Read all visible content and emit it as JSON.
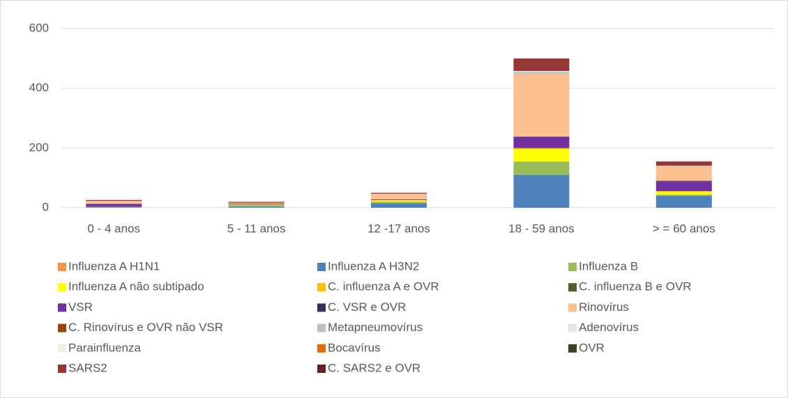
{
  "chart_data": {
    "type": "stacked_bar",
    "categories": [
      "0 - 4  anos",
      "5 - 11 anos",
      "12 -17 anos",
      "18 - 59 anos",
      "> = 60 anos"
    ],
    "ylim": [
      0,
      600
    ],
    "yticks": [
      0,
      200,
      400,
      600
    ],
    "grid": true,
    "legend": "bottom",
    "series": [
      {
        "name": "Influenza A H1N1",
        "color": "#f79646",
        "values": [
          1,
          0,
          0,
          0,
          0
        ]
      },
      {
        "name": "Influenza A H3N2",
        "color": "#4f81bd",
        "values": [
          3,
          4,
          15,
          110,
          40
        ]
      },
      {
        "name": "Influenza B",
        "color": "#9bbb59",
        "values": [
          0,
          5,
          5,
          45,
          4
        ]
      },
      {
        "name": "Influenza A não subtipado",
        "color": "#ffff00",
        "values": [
          0,
          2,
          4,
          41,
          9
        ]
      },
      {
        "name": "C. influenza A e OVR",
        "color": "#ffc000",
        "values": [
          0,
          0,
          2,
          4,
          3
        ]
      },
      {
        "name": "C. influenza B e OVR",
        "color": "#4f6228",
        "values": [
          0,
          1,
          0,
          0,
          0
        ]
      },
      {
        "name": "VSR",
        "color": "#7030a0",
        "values": [
          9,
          2,
          2,
          38,
          32
        ]
      },
      {
        "name": "C. VSR e OVR",
        "color": "#3b2e58",
        "values": [
          0,
          0,
          0,
          0,
          2
        ]
      },
      {
        "name": "Rinovírus",
        "color": "#fac090",
        "values": [
          10,
          3,
          18,
          210,
          48
        ]
      },
      {
        "name": "C. Rinovírus e OVR não VSR",
        "color": "#974706",
        "values": [
          0,
          0,
          0,
          0,
          0
        ]
      },
      {
        "name": "Metapneumovírus",
        "color": "#bfbfbf",
        "values": [
          0,
          0,
          1,
          6,
          3
        ]
      },
      {
        "name": "Adenovírus",
        "color": "#e6e0ec",
        "values": [
          0,
          0,
          0,
          2,
          0
        ]
      },
      {
        "name": "Parainfluenza",
        "color": "#ebf1de",
        "values": [
          0,
          0,
          0,
          2,
          0
        ]
      },
      {
        "name": "Bocavírus",
        "color": "#e36c09",
        "values": [
          0,
          0,
          0,
          0,
          0
        ]
      },
      {
        "name": "OVR",
        "color": "#3f3f1f",
        "values": [
          0,
          0,
          0,
          0,
          0
        ]
      },
      {
        "name": "SARS2",
        "color": "#953735",
        "values": [
          3,
          3,
          3,
          42,
          14
        ]
      },
      {
        "name": "C. SARS2 e OVR",
        "color": "#632423",
        "values": [
          0,
          0,
          0,
          0,
          0
        ]
      }
    ]
  }
}
